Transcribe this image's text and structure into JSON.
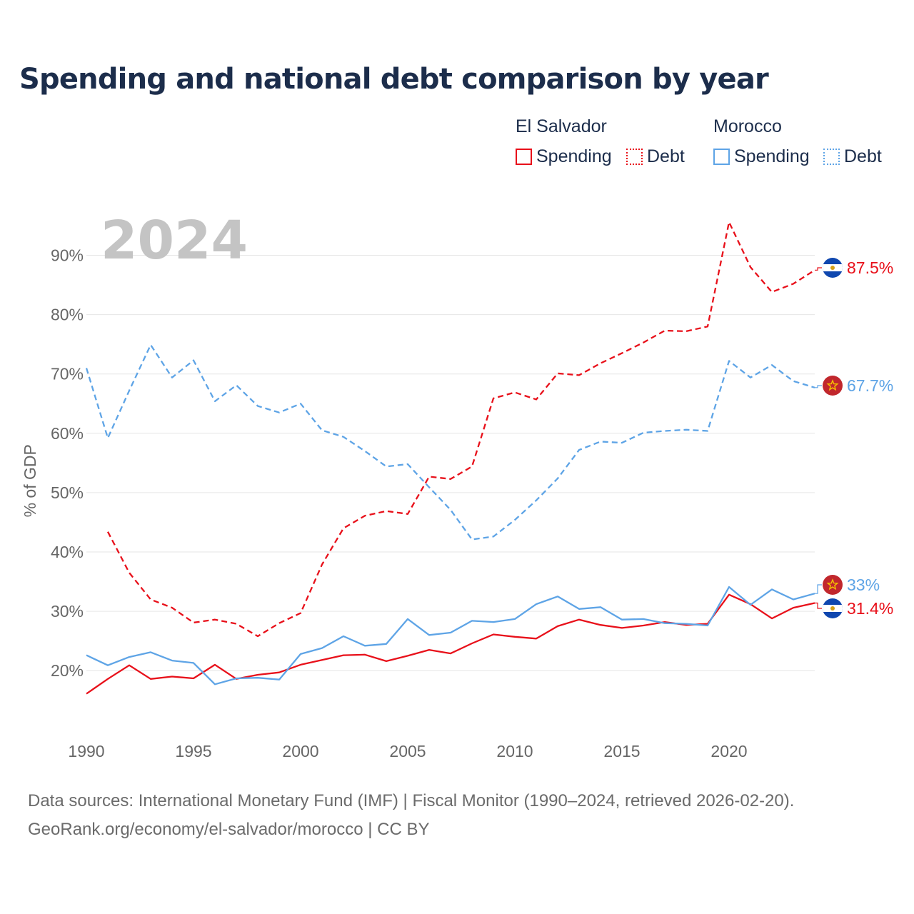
{
  "title": "Spending and national debt comparison by year",
  "legend": {
    "groups": [
      {
        "country": "El Salvador",
        "spending_label": "Spending",
        "debt_label": "Debt"
      },
      {
        "country": "Morocco",
        "spending_label": "Spending",
        "debt_label": "Debt"
      }
    ]
  },
  "colors": {
    "el_salvador": "#e8101a",
    "morocco": "#5ea4e6"
  },
  "footer": {
    "line1": "Data sources: International Monetary Fund (IMF) | Fiscal Monitor (1990–2024, retrieved 2026-02-20).",
    "line2": "GeoRank.org/economy/el-salvador/morocco | CC BY"
  },
  "chart_data": {
    "type": "line",
    "title": "Spending and national debt comparison by year",
    "year_label": "2024",
    "ylabel": "% of GDP",
    "xlabel": "",
    "xlim": [
      1990,
      2024
    ],
    "ylim": [
      10,
      97
    ],
    "yticks": [
      20,
      30,
      40,
      50,
      60,
      70,
      80,
      90
    ],
    "ytick_labels": [
      "20%",
      "30%",
      "40%",
      "50%",
      "60%",
      "70%",
      "80%",
      "90%"
    ],
    "xticks": [
      1990,
      1995,
      2000,
      2005,
      2010,
      2015,
      2020
    ],
    "xtick_labels": [
      "1990",
      "1995",
      "2000",
      "2005",
      "2010",
      "2015",
      "2020"
    ],
    "grid": true,
    "series": [
      {
        "name": "El Salvador Debt",
        "country": "El Salvador",
        "kind": "debt",
        "style": "dashed",
        "color": "#e8101a",
        "end_label": "87.5%",
        "flag": "el-salvador",
        "x": [
          1991,
          1992,
          1993,
          1994,
          1995,
          1996,
          1997,
          1998,
          1999,
          2000,
          2001,
          2002,
          2003,
          2004,
          2005,
          2006,
          2007,
          2008,
          2009,
          2010,
          2011,
          2012,
          2013,
          2014,
          2015,
          2016,
          2017,
          2018,
          2019,
          2020,
          2021,
          2022,
          2023,
          2024
        ],
        "values": [
          43.4,
          36.5,
          32.0,
          30.6,
          28.1,
          28.6,
          27.9,
          25.8,
          28.0,
          29.7,
          37.9,
          44.0,
          46.1,
          46.9,
          46.4,
          52.7,
          52.3,
          54.4,
          65.9,
          66.9,
          65.7,
          70.1,
          69.8,
          71.8,
          73.5,
          75.3,
          77.3,
          77.2,
          78.0,
          95.6,
          88.0,
          83.8,
          85.2,
          87.5
        ]
      },
      {
        "name": "El Salvador Spending",
        "country": "El Salvador",
        "kind": "spending",
        "style": "solid",
        "color": "#e8101a",
        "end_label": "31.4%",
        "flag": "el-salvador",
        "x": [
          1990,
          1991,
          1992,
          1993,
          1994,
          1995,
          1996,
          1997,
          1998,
          1999,
          2000,
          2001,
          2002,
          2003,
          2004,
          2005,
          2006,
          2007,
          2008,
          2009,
          2010,
          2011,
          2012,
          2013,
          2014,
          2015,
          2016,
          2017,
          2018,
          2019,
          2020,
          2021,
          2022,
          2023,
          2024
        ],
        "values": [
          16.1,
          18.6,
          20.9,
          18.6,
          19.0,
          18.7,
          21.0,
          18.6,
          19.3,
          19.7,
          21.0,
          21.8,
          22.6,
          22.7,
          21.6,
          22.5,
          23.5,
          22.9,
          24.6,
          26.1,
          25.7,
          25.4,
          27.5,
          28.6,
          27.7,
          27.2,
          27.6,
          28.2,
          27.7,
          27.9,
          32.8,
          31.2,
          28.8,
          30.6,
          31.4
        ]
      },
      {
        "name": "Morocco Debt",
        "country": "Morocco",
        "kind": "debt",
        "style": "dashed",
        "color": "#5ea4e6",
        "end_label": "67.7%",
        "flag": "morocco",
        "x": [
          1990,
          1991,
          1992,
          1993,
          1994,
          1995,
          1996,
          1997,
          1998,
          1999,
          2000,
          2001,
          2002,
          2003,
          2004,
          2005,
          2006,
          2007,
          2008,
          2009,
          2010,
          2011,
          2012,
          2013,
          2014,
          2015,
          2016,
          2017,
          2018,
          2019,
          2020,
          2021,
          2022,
          2023,
          2024
        ],
        "values": [
          71.0,
          59.2,
          67.2,
          74.9,
          69.4,
          72.3,
          65.4,
          68.1,
          64.6,
          63.5,
          65.0,
          60.5,
          59.4,
          57.0,
          54.4,
          54.8,
          50.9,
          47.1,
          42.1,
          42.6,
          45.4,
          48.7,
          52.4,
          57.2,
          58.6,
          58.4,
          60.1,
          60.4,
          60.6,
          60.4,
          72.2,
          69.4,
          71.5,
          68.8,
          67.7
        ]
      },
      {
        "name": "Morocco Spending",
        "country": "Morocco",
        "kind": "spending",
        "style": "solid",
        "color": "#5ea4e6",
        "end_label": "33%",
        "flag": "morocco",
        "x": [
          1990,
          1991,
          1992,
          1993,
          1994,
          1995,
          1996,
          1997,
          1998,
          1999,
          2000,
          2001,
          2002,
          2003,
          2004,
          2005,
          2006,
          2007,
          2008,
          2009,
          2010,
          2011,
          2012,
          2013,
          2014,
          2015,
          2016,
          2017,
          2018,
          2019,
          2020,
          2021,
          2022,
          2023,
          2024
        ],
        "values": [
          22.6,
          20.9,
          22.3,
          23.1,
          21.7,
          21.3,
          17.7,
          18.7,
          18.8,
          18.5,
          22.8,
          23.8,
          25.8,
          24.2,
          24.5,
          28.7,
          26.0,
          26.4,
          28.4,
          28.2,
          28.7,
          31.2,
          32.5,
          30.4,
          30.7,
          28.6,
          28.7,
          28.0,
          27.9,
          27.6,
          34.1,
          31.1,
          33.7,
          32.0,
          33.0
        ]
      }
    ]
  }
}
